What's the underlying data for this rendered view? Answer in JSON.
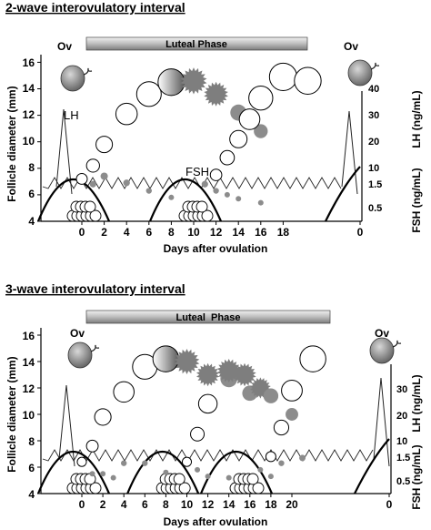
{
  "chart_data": [
    {
      "type": "scatter",
      "title": "2-wave interovulatory interval",
      "phase_label": "Luteal Phase",
      "ovulation_label": "Ov",
      "xlabel": "Days after ovulation",
      "ylabel": "Follicle diameter (mm)",
      "ylabel_right_lh": "LH (ng/mL)",
      "ylabel_right_fsh": "FSH (ng/mL)",
      "x_tick_labels": [
        "0",
        "2",
        "4",
        "6",
        "8",
        "10",
        "12",
        "14",
        "16",
        "18",
        "0"
      ],
      "y_ticks": [
        "4",
        "6",
        "8",
        "10",
        "12",
        "14",
        "16"
      ],
      "ylim": [
        4,
        17
      ],
      "lh_ticks": [
        "10",
        "20",
        "30",
        "40"
      ],
      "fsh_ticks": [
        "0.5",
        "1.5"
      ],
      "series_labels": [
        "LH",
        "FSH"
      ],
      "grid": false,
      "wave_starts": [
        0,
        10
      ],
      "dominant_follicles": [
        {
          "x": 0,
          "y": 7.2
        },
        {
          "x": 1,
          "y": 8.2
        },
        {
          "x": 2,
          "y": 9.8
        },
        {
          "x": 4,
          "y": 12.1
        },
        {
          "x": 6,
          "y": 13.6
        },
        {
          "x": 8,
          "y": 14.5
        }
      ],
      "regressing_follicles": [
        {
          "x": 10,
          "y": 14.6,
          "shape": "star"
        },
        {
          "x": 12,
          "y": 13.6,
          "shape": "star"
        },
        {
          "x": 14,
          "y": 12.2,
          "shape": "circle"
        },
        {
          "x": 16,
          "y": 10.8,
          "shape": "circle"
        }
      ],
      "ovulatory_follicles": [
        {
          "x": 12,
          "y": 7.5
        },
        {
          "x": 13,
          "y": 8.8
        },
        {
          "x": 14,
          "y": 10.2
        },
        {
          "x": 15,
          "y": 11.7
        },
        {
          "x": 16,
          "y": 13.3
        },
        {
          "x": 18,
          "y": 14.9
        },
        {
          "x": 20.2,
          "y": 14.6
        }
      ],
      "subordinate_follicles": [
        {
          "x": 1,
          "y": 6.8
        },
        {
          "x": 2,
          "y": 7.4
        },
        {
          "x": 4,
          "y": 6.9
        },
        {
          "x": 6,
          "y": 6.3
        },
        {
          "x": 8,
          "y": 5.8
        },
        {
          "x": 11,
          "y": 6.8
        },
        {
          "x": 12,
          "y": 6.3
        },
        {
          "x": 13,
          "y": 6.0
        },
        {
          "x": 14,
          "y": 5.7
        },
        {
          "x": 16,
          "y": 5.4
        }
      ]
    },
    {
      "type": "scatter",
      "title": "3-wave interovulatory interval",
      "phase_label": "Luteal  Phase",
      "ovulation_label": "Ov",
      "xlabel": "Days after ovulation",
      "ylabel": "Follicle diameter (mm)",
      "ylabel_right_lh": "LH (ng/mL)",
      "ylabel_right_fsh": "FSH (ng/mL)",
      "x_tick_labels": [
        "0",
        "2",
        "4",
        "6",
        "8",
        "10",
        "12",
        "14",
        "16",
        "18",
        "20",
        "0"
      ],
      "y_ticks": [
        "4",
        "6",
        "8",
        "10",
        "12",
        "14",
        "16"
      ],
      "ylim": [
        4,
        17
      ],
      "lh_ticks": [
        "10",
        "20",
        "30"
      ],
      "fsh_ticks": [
        "0.5",
        "1.5"
      ],
      "grid": false,
      "wave_starts": [
        0,
        8.5,
        15.5
      ],
      "dominant_follicles": [
        {
          "x": 0,
          "y": 6.4
        },
        {
          "x": 1,
          "y": 7.6
        },
        {
          "x": 2,
          "y": 9.8
        },
        {
          "x": 4,
          "y": 11.7
        },
        {
          "x": 6,
          "y": 13.6
        },
        {
          "x": 8,
          "y": 14.2
        }
      ],
      "regressing_follicles": [
        {
          "x": 10,
          "y": 14.0,
          "shape": "star"
        },
        {
          "x": 12,
          "y": 13.0,
          "shape": "star"
        },
        {
          "x": 14,
          "y": 12.7,
          "shape": "circle"
        },
        {
          "x": 16,
          "y": 11.6,
          "shape": "circle"
        }
      ],
      "second_wave_follicles": [
        {
          "x": 10,
          "y": 6.4
        },
        {
          "x": 11,
          "y": 8.5
        },
        {
          "x": 12,
          "y": 10.8
        },
        {
          "x": 14,
          "y": 13.3,
          "shape": "star"
        },
        {
          "x": 15.5,
          "y": 13.0,
          "shape": "star"
        },
        {
          "x": 17,
          "y": 12.0,
          "shape": "star"
        },
        {
          "x": 18,
          "y": 11.4,
          "shape": "circle"
        },
        {
          "x": 20,
          "y": 10.0,
          "shape": "circle"
        }
      ],
      "ovulatory_follicles": [
        {
          "x": 18,
          "y": 6.8
        },
        {
          "x": 19,
          "y": 9.0
        },
        {
          "x": 20,
          "y": 11.8
        },
        {
          "x": 22,
          "y": 14.2
        }
      ],
      "subordinate_follicles": [
        {
          "x": 1,
          "y": 5.5
        },
        {
          "x": 2,
          "y": 5.5
        },
        {
          "x": 3,
          "y": 5.2
        },
        {
          "x": 4,
          "y": 6.3
        },
        {
          "x": 6,
          "y": 6.3
        },
        {
          "x": 8,
          "y": 5.6
        },
        {
          "x": 11,
          "y": 5.8
        },
        {
          "x": 12,
          "y": 5.3
        },
        {
          "x": 14,
          "y": 5.2
        },
        {
          "x": 17,
          "y": 5.8
        },
        {
          "x": 18,
          "y": 5.3
        },
        {
          "x": 19,
          "y": 6.3
        },
        {
          "x": 21,
          "y": 6.7
        }
      ]
    }
  ],
  "colors": {
    "axis": "#000000",
    "follicle_fill": "#888888",
    "bar_dark": "#777777",
    "bar_light": "#e2e2e2"
  }
}
